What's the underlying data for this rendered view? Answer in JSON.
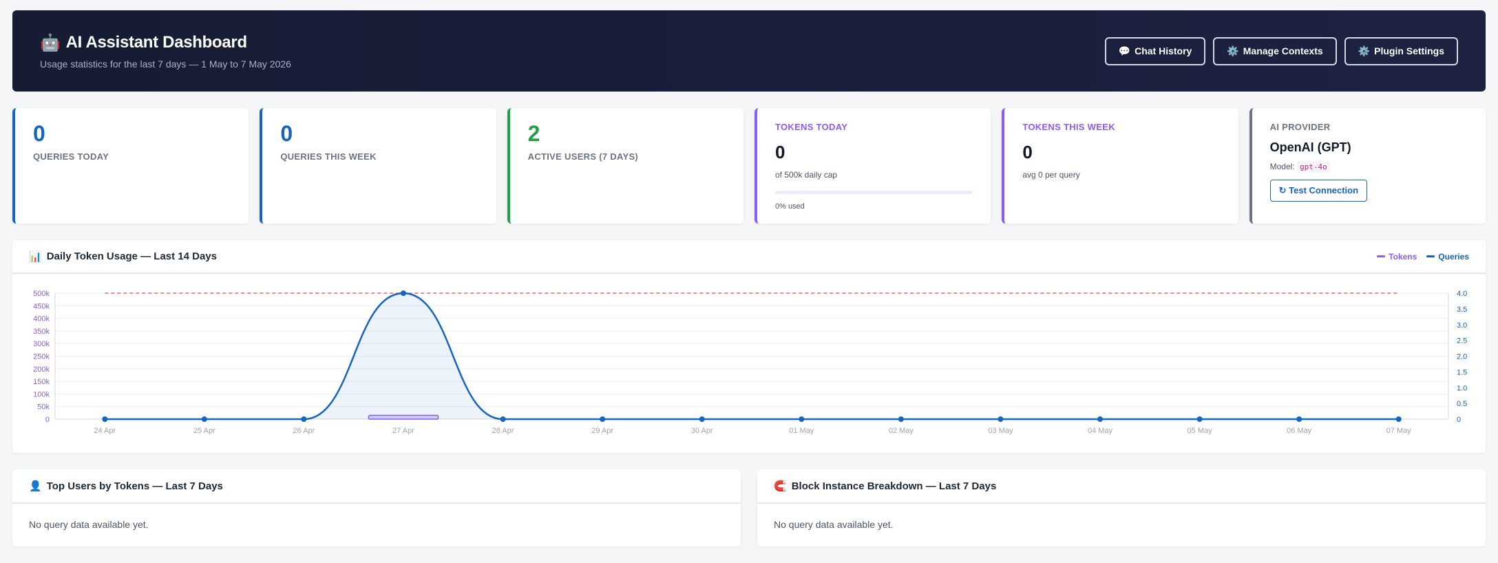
{
  "header": {
    "title": "AI Assistant Dashboard",
    "subtitle": "Usage statistics for the last 7 days — 1 May to 7 May 2026",
    "buttons": [
      {
        "label": "Chat History",
        "icon": "speech-bubble-icon"
      },
      {
        "label": "Manage Contexts",
        "icon": "gear-icon"
      },
      {
        "label": "Plugin Settings",
        "icon": "gear-icon"
      }
    ]
  },
  "cards": {
    "queries_today": {
      "value": "0",
      "label": "QUERIES TODAY"
    },
    "queries_week": {
      "value": "0",
      "label": "QUERIES THIS WEEK"
    },
    "active_users": {
      "value": "2",
      "label": "ACTIVE USERS (7 DAYS)"
    },
    "tokens_today": {
      "label": "TOKENS TODAY",
      "value": "0",
      "cap": "of 500k daily cap",
      "used": "0% used",
      "used_fraction": 0
    },
    "tokens_week": {
      "label": "TOKENS THIS WEEK",
      "value": "0",
      "avg": "avg 0 per query"
    },
    "provider": {
      "label": "AI PROVIDER",
      "name": "OpenAI (GPT)",
      "model_label": "Model:",
      "model": "gpt-4o",
      "test_button": "Test Connection"
    }
  },
  "chart_panel": {
    "title": "Daily Token Usage — Last 14 Days",
    "legend": [
      {
        "name": "Tokens",
        "color": "#8b5cf6"
      },
      {
        "name": "Queries",
        "color": "#1565c0"
      }
    ]
  },
  "chart_data": {
    "type": "line",
    "categories": [
      "24 Apr",
      "25 Apr",
      "26 Apr",
      "27 Apr",
      "28 Apr",
      "29 Apr",
      "30 Apr",
      "01 May",
      "02 May",
      "03 May",
      "04 May",
      "05 May",
      "06 May",
      "07 May"
    ],
    "series": [
      {
        "name": "Tokens",
        "type": "bar",
        "axis": "left",
        "color": "#8b5cf6",
        "values": [
          0,
          0,
          0,
          15000,
          0,
          0,
          0,
          0,
          0,
          0,
          0,
          0,
          0,
          0
        ]
      },
      {
        "name": "Queries",
        "type": "line",
        "axis": "right",
        "color": "#1565c0",
        "values": [
          0,
          0,
          0,
          4,
          0,
          0,
          0,
          0,
          0,
          0,
          0,
          0,
          0,
          0
        ]
      }
    ],
    "cap_line": {
      "value": 500000,
      "color": "#ef4444"
    },
    "left_axis": {
      "ticks": [
        0,
        50000,
        100000,
        150000,
        200000,
        250000,
        300000,
        350000,
        400000,
        450000,
        500000
      ],
      "labels": [
        "0",
        "50k",
        "100k",
        "150k",
        "200k",
        "250k",
        "300k",
        "350k",
        "400k",
        "450k",
        "500k"
      ],
      "ylim": [
        0,
        500000
      ],
      "color": "#8b5cf6"
    },
    "right_axis": {
      "ticks": [
        0,
        0.5,
        1.0,
        1.5,
        2.0,
        2.5,
        3.0,
        3.5,
        4.0
      ],
      "labels": [
        "0",
        "0.5",
        "1.0",
        "1.5",
        "2.0",
        "2.5",
        "3.0",
        "3.5",
        "4.0"
      ],
      "ylim": [
        0,
        4
      ],
      "color": "#1565c0"
    },
    "grid": true
  },
  "top_users": {
    "title": "Top Users by Tokens — Last 7 Days",
    "empty": "No query data available yet."
  },
  "blocks": {
    "title": "Block Instance Breakdown — Last 7 Days",
    "empty": "No query data available yet."
  }
}
